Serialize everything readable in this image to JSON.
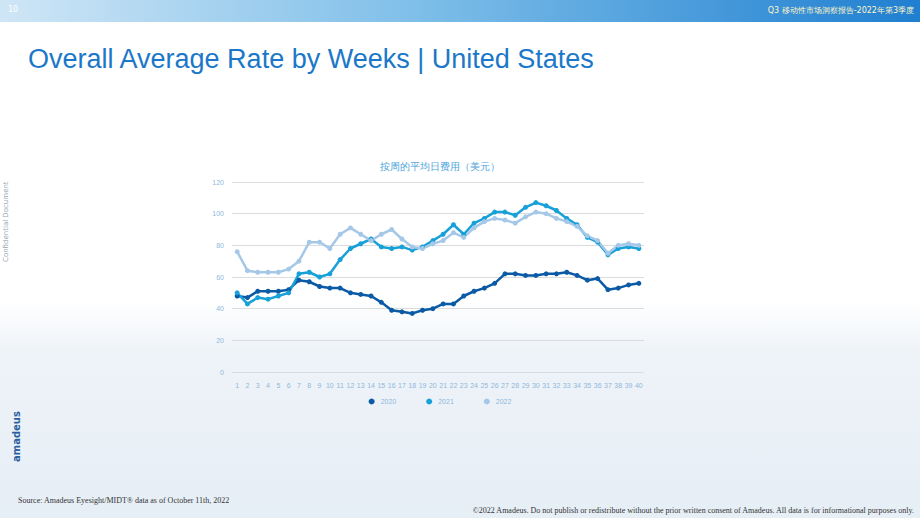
{
  "page": {
    "page_number": "10",
    "header": "Q3 移动性市场洞察报告-2022年第3季度",
    "title": "Overall Average Rate by Weeks | United States",
    "side_label": "Confidential Document",
    "logo": "amadeus",
    "source": "Source: Amadeus Eyesight/MIDT® data as of October 11th, 2022",
    "copyright": "©2022 Amadeus. Do not publish or redistribute without the prior written consent of Amadeus. All data is for informational purposes only."
  },
  "chart_data": {
    "type": "line",
    "title": "按周的平均日费用（美元）",
    "categories": [
      "1",
      "2",
      "3",
      "4",
      "5",
      "6",
      "7",
      "8",
      "9",
      "10",
      "11",
      "12",
      "13",
      "14",
      "15",
      "16",
      "17",
      "18",
      "19",
      "20",
      "21",
      "22",
      "23",
      "24",
      "25",
      "26",
      "27",
      "28",
      "29",
      "30",
      "31",
      "32",
      "33",
      "34",
      "35",
      "36",
      "37",
      "38",
      "39",
      "40"
    ],
    "series": [
      {
        "name": "2020",
        "color": "#0b5aa6",
        "marker": "circle",
        "values": [
          48,
          47,
          51,
          51,
          51,
          52,
          58,
          57,
          54,
          53,
          53,
          50,
          49,
          48,
          44,
          39,
          38,
          37,
          39,
          40,
          43,
          43,
          48,
          51,
          53,
          56,
          62,
          62,
          61,
          61,
          62,
          62,
          63,
          61,
          58,
          59,
          52,
          53,
          55,
          56
        ]
      },
      {
        "name": "2021",
        "color": "#18a0d8",
        "marker": "circle",
        "values": [
          50,
          43,
          47,
          46,
          48,
          50,
          62,
          63,
          60,
          62,
          71,
          78,
          81,
          84,
          79,
          78,
          79,
          77,
          79,
          83,
          87,
          93,
          87,
          94,
          97,
          101,
          101,
          99,
          104,
          107,
          105,
          102,
          97,
          93,
          85,
          82,
          74,
          78,
          79,
          78
        ]
      },
      {
        "name": "2022",
        "color": "#a6c8e8",
        "marker": "circle",
        "values": [
          76,
          64,
          63,
          63,
          63,
          65,
          70,
          82,
          82,
          78,
          87,
          91,
          87,
          83,
          87,
          90,
          84,
          79,
          78,
          81,
          83,
          88,
          85,
          91,
          95,
          97,
          96,
          94,
          98,
          101,
          100,
          97,
          95,
          92,
          86,
          83,
          75,
          80,
          81,
          80
        ]
      }
    ],
    "ylim": [
      0,
      120
    ],
    "yticks": [
      0,
      20,
      40,
      60,
      80,
      100,
      120
    ],
    "grid": true,
    "legend": "bottom"
  }
}
